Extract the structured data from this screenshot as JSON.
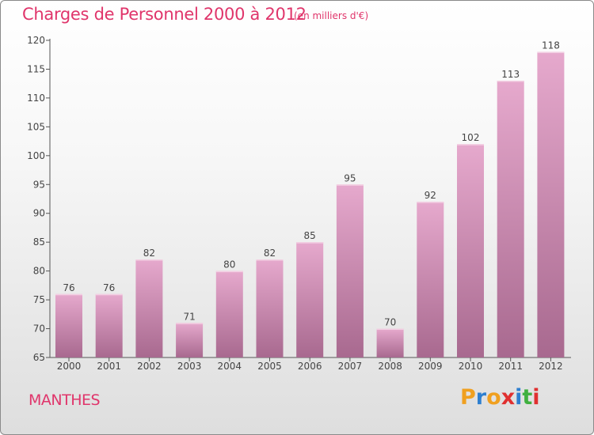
{
  "header": {
    "title": "Charges de Personnel 2000 à 2012",
    "subtitle": "(en milliers d'€)"
  },
  "footer": {
    "town": "MANTHES",
    "brand_letters": [
      "P",
      "r",
      "o",
      "x",
      "i",
      "t",
      "i"
    ],
    "brand_colors": [
      "#f0a020",
      "#2e7fd0",
      "#f0a020",
      "#e03030",
      "#2e7fd0",
      "#40b040",
      "#e03030"
    ]
  },
  "colors": {
    "title": "#e0356b",
    "bar_light": "#e6a9cd",
    "bar_dark": "#a8698f",
    "axis": "#555555",
    "grid_tick": "#555555"
  },
  "chart_data": {
    "type": "bar",
    "categories": [
      "2000",
      "2001",
      "2002",
      "2003",
      "2004",
      "2005",
      "2006",
      "2007",
      "2008",
      "2009",
      "2010",
      "2011",
      "2012"
    ],
    "values": [
      76,
      76,
      82,
      71,
      80,
      82,
      85,
      95,
      70,
      92,
      102,
      113,
      118
    ],
    "data_labels": [
      "76",
      "76",
      "82",
      "71",
      "80",
      "82",
      "85",
      "95",
      "70",
      "92",
      "102",
      "113",
      "118"
    ],
    "yticks": [
      65,
      70,
      75,
      80,
      85,
      90,
      95,
      100,
      105,
      110,
      115,
      120
    ],
    "ylim": [
      65,
      120
    ],
    "title": "Charges de Personnel 2000 à 2012",
    "xlabel": "",
    "ylabel": "",
    "grid": false
  }
}
